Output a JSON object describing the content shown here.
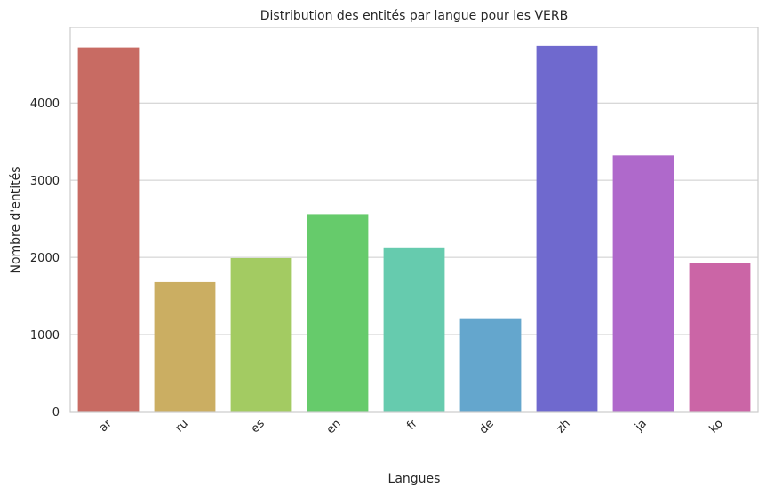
{
  "chart_data": {
    "type": "bar",
    "title": "Distribution des entités par langue pour les VERB",
    "xlabel": "Langues",
    "ylabel": "Nombre d'entités",
    "categories": [
      "ar",
      "ru",
      "es",
      "en",
      "fr",
      "de",
      "zh",
      "ja",
      "ko"
    ],
    "values": [
      4720,
      1680,
      1990,
      2560,
      2130,
      1200,
      4740,
      3320,
      1930
    ],
    "colors": [
      "#c86b63",
      "#cbae62",
      "#a3cb62",
      "#66cb6b",
      "#66cbae",
      "#64a6cd",
      "#6f69ce",
      "#af69cb",
      "#cb65a6"
    ],
    "ylim": [
      0,
      4980
    ],
    "yticks": [
      0,
      1000,
      2000,
      3000,
      4000
    ],
    "grid": true
  }
}
